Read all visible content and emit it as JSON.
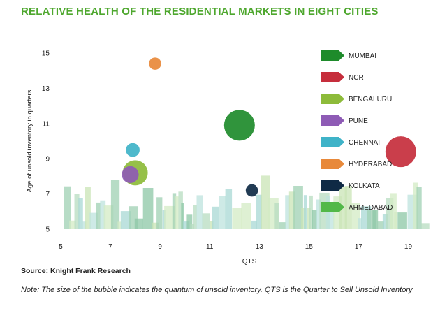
{
  "title": "RELATIVE HEALTH OF THE RESIDENTIAL MARKETS IN EIGHT CITIES",
  "source": "Source: Knight Frank Research",
  "note": "Note: The size of the bubble indicates the quantum of unsold inventory. QTS is the Quarter to Sell Unsold Inventory",
  "chart_data": {
    "type": "scatter",
    "subtype": "bubble",
    "xlabel": "QTS",
    "ylabel": "Age of unsold inventory in quarters",
    "xlim": [
      5,
      20
    ],
    "ylim": [
      5,
      15
    ],
    "x_ticks": [
      5,
      7,
      9,
      11,
      13,
      15,
      17,
      19
    ],
    "y_ticks": [
      5,
      7,
      9,
      11,
      13,
      15
    ],
    "legend_position": "right",
    "series": [
      {
        "name": "MUMBAI",
        "x": 12.2,
        "y": 10.9,
        "relative_size": 1.0,
        "color": "#1e8b2b"
      },
      {
        "name": "NCR",
        "x": 18.7,
        "y": 9.4,
        "relative_size": 1.0,
        "color": "#c62e3c"
      },
      {
        "name": "BENGALURU",
        "x": 8.0,
        "y": 8.2,
        "relative_size": 0.82,
        "color": "#8dbb3a"
      },
      {
        "name": "PUNE",
        "x": 7.8,
        "y": 8.1,
        "relative_size": 0.55,
        "color": "#8e5bb5"
      },
      {
        "name": "CHENNAI",
        "x": 7.9,
        "y": 9.5,
        "relative_size": 0.45,
        "color": "#3fb3c8"
      },
      {
        "name": "HYDERABAD",
        "x": 8.8,
        "y": 14.4,
        "relative_size": 0.4,
        "color": "#e8893a"
      },
      {
        "name": "KOLKATA",
        "x": 12.7,
        "y": 7.2,
        "relative_size": 0.4,
        "color": "#0f2a45"
      },
      {
        "name": "AHMEDABAD",
        "x": null,
        "y": null,
        "relative_size": null,
        "color": "#52b848"
      }
    ]
  }
}
